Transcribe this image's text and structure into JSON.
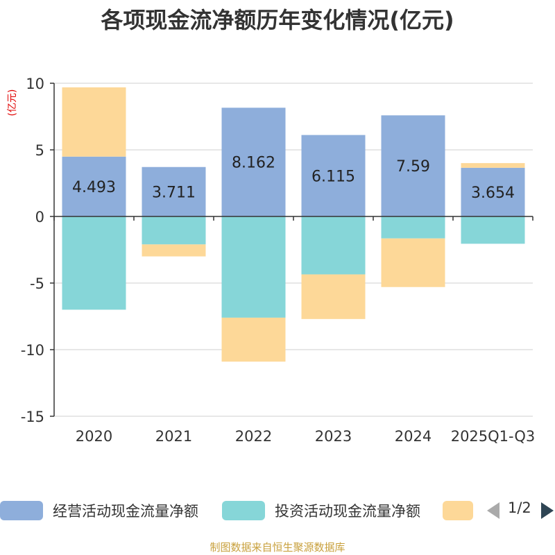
{
  "chart_data": {
    "type": "bar",
    "stacked": true,
    "title": "各项现金流净额历年变化情况(亿元)",
    "ylabel": "(亿元)",
    "categories": [
      "2020",
      "2021",
      "2022",
      "2023",
      "2024",
      "2025Q1-Q3"
    ],
    "ylim": [
      -15,
      10
    ],
    "yticks": [
      10,
      5,
      0,
      -5,
      -10,
      -15
    ],
    "grid": true,
    "series": [
      {
        "name": "经营活动现金流量净额",
        "color": "#8eaedb",
        "values": [
          4.493,
          3.711,
          8.162,
          6.115,
          7.59,
          3.654
        ],
        "labels": [
          "4.493",
          "3.711",
          "8.162",
          "6.115",
          "7.59",
          "3.654"
        ]
      },
      {
        "name": "投资活动现金流量净额",
        "color": "#86d6d8",
        "values": [
          -7.0,
          -2.1,
          -7.6,
          -4.35,
          -1.65,
          -2.05
        ]
      },
      {
        "name": "",
        "color": "#fdd898",
        "values": [
          5.2,
          -0.9,
          -3.3,
          -3.35,
          -3.65,
          0.35
        ]
      }
    ]
  },
  "legend": {
    "page": "1/2",
    "prev_icon": "triangle-left-icon",
    "next_icon": "triangle-right-icon"
  },
  "footer": "制图数据来自恒生聚源数据库"
}
